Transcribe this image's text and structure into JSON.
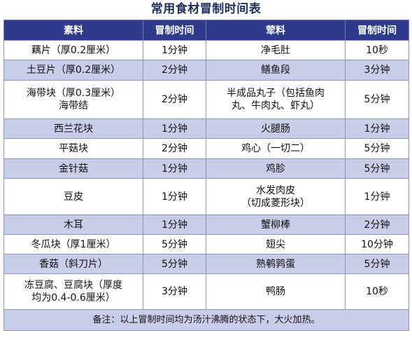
{
  "title": "常用食材冒制时间表",
  "headers": {
    "veg_item": "素料",
    "veg_time": "冒制时间",
    "meat_item": "荤料",
    "meat_time": "冒制时间"
  },
  "rows": [
    {
      "veg": "藕片（厚0.2厘米）",
      "veg_time": "1分钟",
      "meat": "净毛肚",
      "meat_time": "10秒"
    },
    {
      "veg": "土豆片（厚0.2厘米）",
      "veg_time": "2分钟",
      "meat": "鳝鱼段",
      "meat_time": "3分钟"
    },
    {
      "veg": "海带块（厚0.3厘米）\n海带结",
      "veg_time": "2分钟",
      "meat": "半成品丸子（包括鱼肉\n丸、牛肉丸、虾丸）",
      "meat_time": "5分钟"
    },
    {
      "veg": "西兰花块",
      "veg_time": "1分钟",
      "meat": "火腿肠",
      "meat_time": "1分钟"
    },
    {
      "veg": "平菇块",
      "veg_time": "2分钟",
      "meat": "鸡心（一切二）",
      "meat_time": "5分钟"
    },
    {
      "veg": "金针菇",
      "veg_time": "1分钟",
      "meat": "鸡胗",
      "meat_time": "5分钟"
    },
    {
      "veg": "豆皮",
      "veg_time": "1分钟",
      "meat": "水发肉皮\n（切成菱形块）",
      "meat_time": "1分钟"
    },
    {
      "veg": "木耳",
      "veg_time": "1分钟",
      "meat": "蟹柳棒",
      "meat_time": "2分钟"
    },
    {
      "veg": "冬瓜块（厚1厘米）",
      "veg_time": "5分钟",
      "meat": "翅尖",
      "meat_time": "10分钟"
    },
    {
      "veg": "香菇（斜刀片）",
      "veg_time": "5分钟",
      "meat": "熟鹌鹑蛋",
      "meat_time": "5分钟"
    },
    {
      "veg": "冻豆腐、豆腐块（厚度\n均为0.4-0.6厘米）",
      "veg_time": "3分钟",
      "meat": "鸭肠",
      "meat_time": "10秒"
    }
  ],
  "note": "备注：以上冒制时间均为汤汁沸腾的状态下，大火加热。",
  "colors": {
    "header_bg": "#2f3b8a",
    "stripe_bg": "#c9cdea",
    "title_color": "#1f2d5c"
  }
}
